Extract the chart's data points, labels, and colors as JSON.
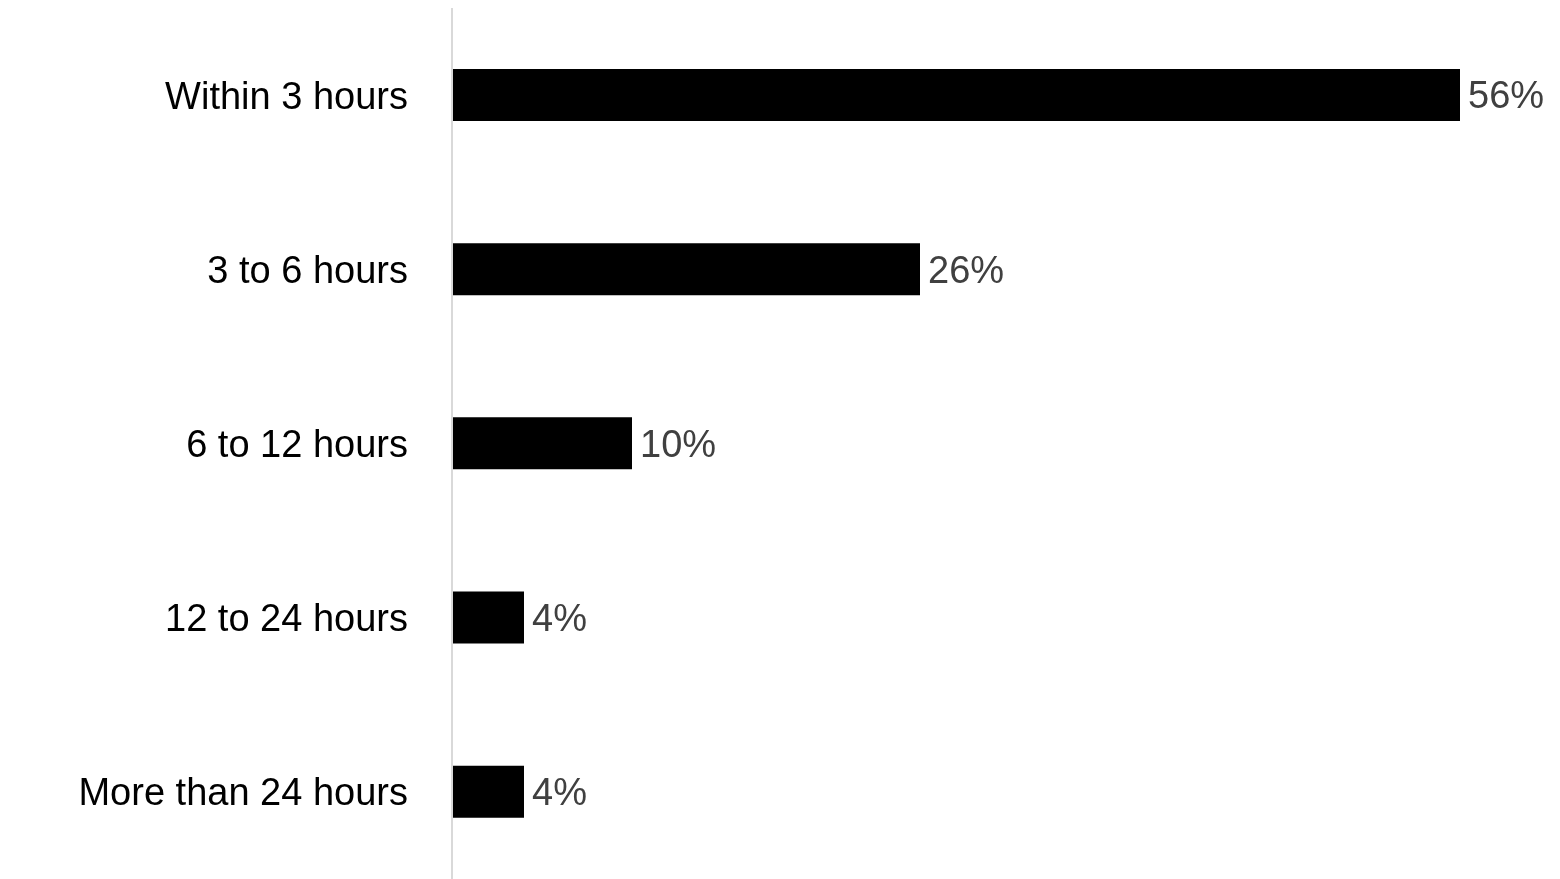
{
  "chart_data": {
    "type": "bar",
    "orientation": "horizontal",
    "categories": [
      "Within 3 hours",
      "3 to 6 hours",
      "6 to 12 hours",
      "12 to 24 hours",
      "More than 24 hours"
    ],
    "values": [
      56,
      26,
      10,
      4,
      4
    ],
    "value_labels": [
      "56%",
      "26%",
      "10%",
      "4%",
      "4%"
    ],
    "color": "#000000",
    "grid": false,
    "legend": false
  }
}
